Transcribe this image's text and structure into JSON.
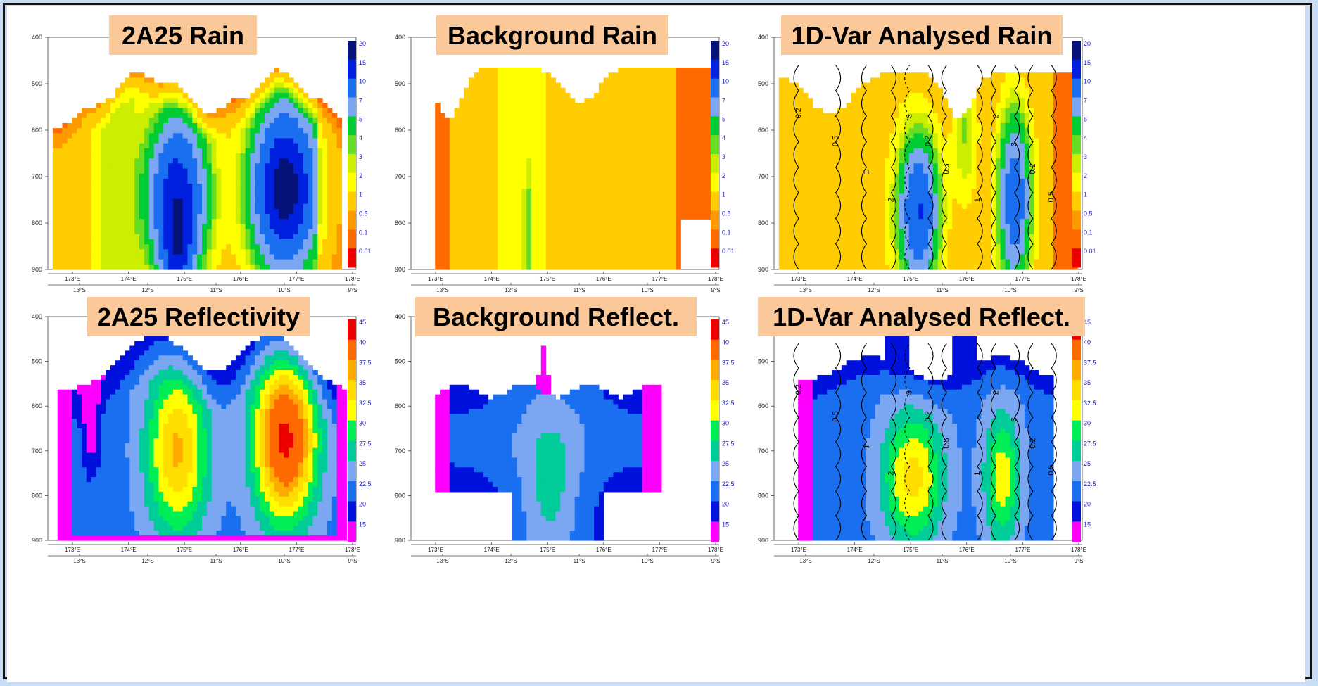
{
  "panels": [
    {
      "title": "2A25 Rain",
      "kind": "rain",
      "field": "obs_rain",
      "contours": false,
      "y_ticks": [
        "400",
        "500",
        "600",
        "700",
        "800",
        "900"
      ],
      "lon_ticks": [
        "173°E",
        "174°E",
        "175°E",
        "176°E",
        "177°E",
        "178°E"
      ],
      "lat_ticks": [
        "13°S",
        "12°S",
        "11°S",
        "10°S",
        "9°S"
      ]
    },
    {
      "title": "Background Rain",
      "kind": "rain",
      "field": "bg_rain",
      "contours": false,
      "y_ticks": [
        "400",
        "500",
        "600",
        "700",
        "800",
        "900"
      ],
      "lon_ticks": [
        "173°E",
        "174°E",
        "175°E",
        "176°E",
        "177°E",
        "178°E"
      ],
      "lat_ticks": [
        "13°S",
        "12°S",
        "11°S",
        "10°S",
        "9°S"
      ]
    },
    {
      "title": "1D-Var Analysed Rain",
      "kind": "rain",
      "field": "an_rain",
      "contours": true,
      "y_ticks": [
        "400",
        "500",
        "600",
        "700",
        "800",
        "900"
      ],
      "lon_ticks": [
        "173°E",
        "174°E",
        "175°E",
        "176°E",
        "177°E",
        "178°E"
      ],
      "lat_ticks": [
        "13°S",
        "12°S",
        "11°S",
        "10°S",
        "9°S"
      ]
    },
    {
      "title": "2A25 Reflectivity",
      "kind": "refl",
      "field": "obs_refl",
      "contours": false,
      "y_ticks": [
        "400",
        "500",
        "600",
        "700",
        "800",
        "900"
      ],
      "lon_ticks": [
        "173°E",
        "174°E",
        "175°E",
        "176°E",
        "177°E",
        "178°E"
      ],
      "lat_ticks": [
        "13°S",
        "12°S",
        "11°S",
        "10°S",
        "9°S"
      ]
    },
    {
      "title": "Background Reflect.",
      "kind": "refl",
      "field": "bg_refl",
      "contours": false,
      "y_ticks": [
        "400",
        "500",
        "600",
        "700",
        "800",
        "900"
      ],
      "lon_ticks": [
        "173°E",
        "174°E",
        "175°E",
        "176°E",
        "177°E",
        "178°E"
      ],
      "lat_ticks": [
        "13°S",
        "12°S",
        "11°S",
        "10°S",
        "9°S"
      ]
    },
    {
      "title": "1D-Var Analysed Reflect.",
      "kind": "refl",
      "field": "an_refl",
      "contours": true,
      "y_ticks": [
        "400",
        "500",
        "600",
        "700",
        "800",
        "900"
      ],
      "lon_ticks": [
        "173°E",
        "174°E",
        "175°E",
        "176°E",
        "177°E",
        "178°E"
      ],
      "lat_ticks": [
        "13°S",
        "12°S",
        "11°S",
        "10°S",
        "9°S"
      ]
    }
  ],
  "colorbars": {
    "rain": {
      "labels": [
        "20",
        "15",
        "10",
        "7",
        "5",
        "4",
        "3",
        "2",
        "1",
        "0.5",
        "0.1",
        "0.01"
      ],
      "colors": [
        "#06127a",
        "#0020e0",
        "#1a6ff0",
        "#7aa6f2",
        "#00cc33",
        "#66dd22",
        "#ccee00",
        "#ffff00",
        "#ffcc00",
        "#ff9900",
        "#ff6a00",
        "#ee0000"
      ]
    },
    "refl": {
      "labels": [
        "45",
        "40",
        "37.5",
        "35",
        "32.5",
        "30",
        "27.5",
        "25",
        "22.5",
        "20",
        "15"
      ],
      "colors": [
        "#ee0000",
        "#ff6a00",
        "#ffaa00",
        "#ffdd00",
        "#ffff00",
        "#00ee55",
        "#00cc99",
        "#7aa6f2",
        "#1a6ff0",
        "#0010dd",
        "#ff00ff"
      ]
    }
  },
  "contour_labels": [
    "0.2",
    "0.5",
    "1",
    "2",
    "3"
  ],
  "theme": {
    "title_bg": "#fbc899",
    "page_bg": "#c9dcf6"
  },
  "chart_data": [
    {
      "type": "heatmap",
      "title": "2A25 Rain",
      "x_axis": [
        "173°E",
        "174°E",
        "175°E",
        "176°E",
        "177°E",
        "178°E"
      ],
      "x2_axis": [
        "13°S",
        "12°S",
        "11°S",
        "10°S",
        "9°S"
      ],
      "y_axis": [
        "400",
        "500",
        "600",
        "700",
        "800",
        "900"
      ],
      "colorbar": "rain",
      "features": [
        {
          "lon": 175.0,
          "max_rain": "10-15"
        },
        {
          "lon": 176.8,
          "max_rain": "15-20"
        }
      ]
    },
    {
      "type": "heatmap",
      "title": "Background Rain",
      "x_axis": [
        "173°E",
        "174°E",
        "175°E",
        "176°E",
        "177°E",
        "178°E"
      ],
      "x2_axis": [
        "13°S",
        "12°S",
        "11°S",
        "10°S",
        "9°S"
      ],
      "y_axis": [
        "400",
        "500",
        "600",
        "700",
        "800",
        "900"
      ],
      "colorbar": "rain",
      "features": [
        {
          "lon": 174.7,
          "max_rain": "4-5"
        }
      ]
    },
    {
      "type": "heatmap",
      "title": "1D-Var Analysed Rain",
      "x_axis": [
        "173°E",
        "174°E",
        "175°E",
        "176°E",
        "177°E",
        "178°E"
      ],
      "x2_axis": [
        "13°S",
        "12°S",
        "11°S",
        "10°S",
        "9°S"
      ],
      "y_axis": [
        "400",
        "500",
        "600",
        "700",
        "800",
        "900"
      ],
      "colorbar": "rain",
      "contour_levels": [
        "0.2",
        "0.5",
        "1",
        "2",
        "3"
      ]
    },
    {
      "type": "heatmap",
      "title": "2A25 Reflectivity",
      "x_axis": [
        "173°E",
        "174°E",
        "175°E",
        "176°E",
        "177°E",
        "178°E"
      ],
      "x2_axis": [
        "13°S",
        "12°S",
        "11°S",
        "10°S",
        "9°S"
      ],
      "y_axis": [
        "400",
        "500",
        "600",
        "700",
        "800",
        "900"
      ],
      "colorbar": "refl",
      "features": [
        {
          "lon": 175.0,
          "max_dbz": "35-37.5"
        },
        {
          "lon": 176.8,
          "max_dbz": "40-45"
        }
      ]
    },
    {
      "type": "heatmap",
      "title": "Background Reflect.",
      "x_axis": [
        "173°E",
        "174°E",
        "175°E",
        "176°E",
        "177°E",
        "178°E"
      ],
      "x2_axis": [
        "13°S",
        "12°S",
        "11°S",
        "10°S",
        "9°S"
      ],
      "y_axis": [
        "400",
        "500",
        "600",
        "700",
        "800",
        "900"
      ],
      "colorbar": "refl",
      "features": [
        {
          "lon": 175.0,
          "max_dbz": "25-27.5"
        }
      ]
    },
    {
      "type": "heatmap",
      "title": "1D-Var Analysed Reflect.",
      "x_axis": [
        "173°E",
        "174°E",
        "175°E",
        "176°E",
        "177°E",
        "178°E"
      ],
      "x2_axis": [
        "13°S",
        "12°S",
        "11°S",
        "10°S",
        "9°S"
      ],
      "y_axis": [
        "400",
        "500",
        "600",
        "700",
        "800",
        "900"
      ],
      "colorbar": "refl",
      "contour_levels": [
        "0.2",
        "0.5",
        "1"
      ]
    }
  ]
}
